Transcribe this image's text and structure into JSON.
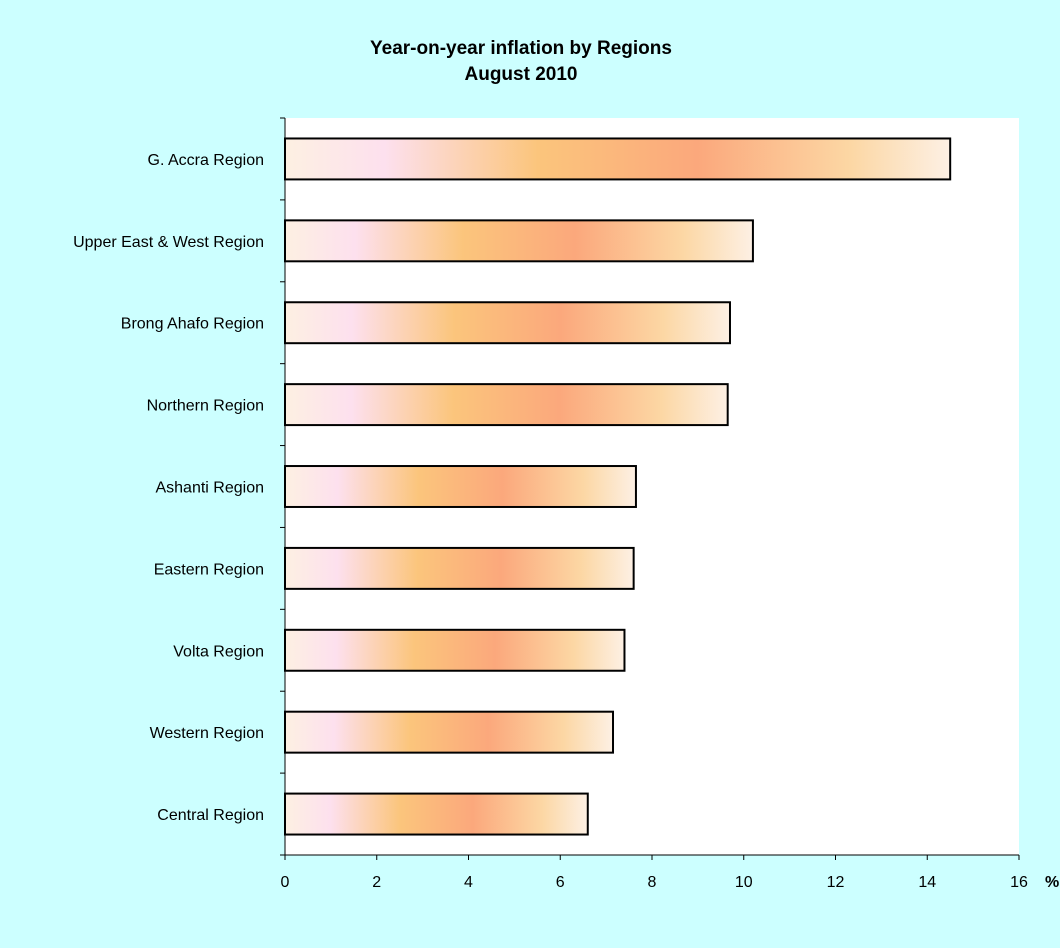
{
  "chart_data": {
    "type": "bar",
    "orientation": "horizontal",
    "title": "Year-on-year inflation by Regions",
    "subtitle": "August 2010",
    "xlabel": "%",
    "ylabel": "",
    "xlim": [
      0,
      16
    ],
    "x_ticks": [
      "0",
      "2",
      "4",
      "6",
      "8",
      "10",
      "12",
      "14",
      "16"
    ],
    "categories": [
      "G. Accra Region",
      "Upper East & West Region",
      "Brong Ahafo Region",
      "Northern Region",
      "Ashanti Region",
      "Eastern Region",
      "Volta Region",
      "Western Region",
      "Central Region"
    ],
    "values": [
      14.5,
      10.2,
      9.7,
      9.65,
      7.65,
      7.6,
      7.4,
      7.15,
      6.6
    ],
    "grid": false,
    "legend": "none"
  },
  "colors": {
    "background": "#ccffff",
    "plot_area": "#ffffff",
    "bar_outline": "#000000",
    "bar_gradient": [
      "#fdeedd",
      "#fde0ee",
      "#fbc57a",
      "#fba87a",
      "#fdd9a0",
      "#fdf0e4"
    ]
  }
}
